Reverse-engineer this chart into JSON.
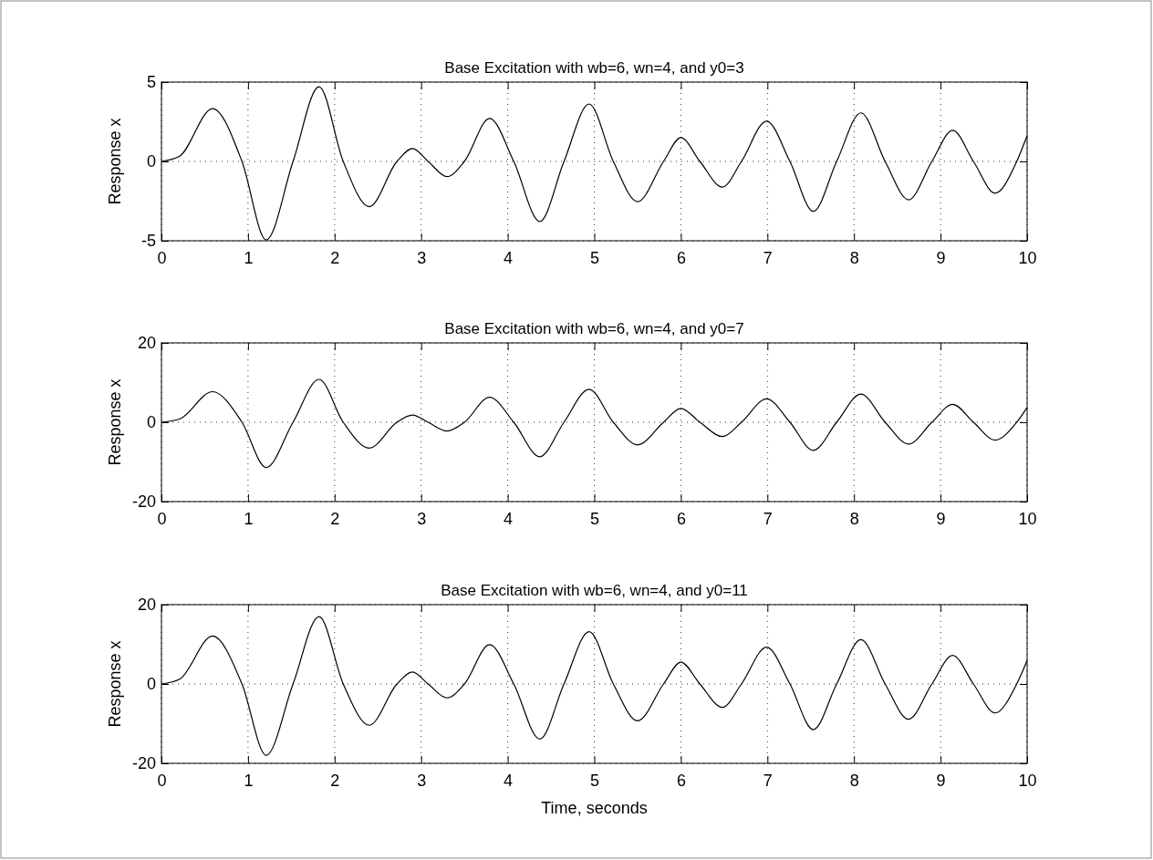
{
  "chart_data": [
    {
      "type": "line",
      "title": "Base Excitation with wb=6, wn=4, and y0=3",
      "ylabel": "Response x",
      "xlim": [
        0,
        10
      ],
      "xticks": [
        0,
        1,
        2,
        3,
        4,
        5,
        6,
        7,
        8,
        9,
        10
      ],
      "ylim": [
        -5,
        5
      ],
      "yticks": [
        -5,
        0,
        5
      ],
      "grid": true,
      "line_style": "solid",
      "marker": "none",
      "x": [
        0,
        0.21,
        0.59,
        0.93,
        1.21,
        1.52,
        1.82,
        2.1,
        2.4,
        2.72,
        2.9,
        3.08,
        3.3,
        3.5,
        3.79,
        4.07,
        4.37,
        4.65,
        4.94,
        5.22,
        5.5,
        5.8,
        6.0,
        6.22,
        6.48,
        6.7,
        6.99,
        7.26,
        7.53,
        7.8,
        8.08,
        8.36,
        8.63,
        8.9,
        9.14,
        9.38,
        9.63,
        9.88,
        10
      ],
      "series": [
        {
          "color": "#000000",
          "values": [
            0,
            0.33,
            3.33,
            0,
            -4.95,
            0,
            4.71,
            0,
            -2.85,
            0,
            0.81,
            0,
            -0.96,
            0,
            2.71,
            0,
            -3.79,
            0,
            3.62,
            0,
            -2.54,
            0,
            1.5,
            0,
            -1.62,
            0,
            2.54,
            0,
            -3.15,
            0,
            3.06,
            0,
            -2.42,
            0,
            1.96,
            0,
            -2.0,
            0,
            1.62
          ]
        }
      ]
    },
    {
      "type": "line",
      "title": "Base Excitation with wb=6, wn=4, and y0=7",
      "ylabel": "Response x",
      "xlim": [
        0,
        10
      ],
      "xticks": [
        0,
        1,
        2,
        3,
        4,
        5,
        6,
        7,
        8,
        9,
        10
      ],
      "ylim": [
        -20,
        20
      ],
      "yticks": [
        -20,
        0,
        20
      ],
      "grid": true,
      "line_style": "solid",
      "marker": "none",
      "x": [
        0,
        0.21,
        0.59,
        0.93,
        1.21,
        1.52,
        1.82,
        2.1,
        2.4,
        2.72,
        2.9,
        3.08,
        3.3,
        3.5,
        3.79,
        4.07,
        4.37,
        4.65,
        4.94,
        5.22,
        5.5,
        5.8,
        6.0,
        6.22,
        6.48,
        6.7,
        6.99,
        7.26,
        7.53,
        7.8,
        8.08,
        8.36,
        8.63,
        8.9,
        9.14,
        9.38,
        9.63,
        9.88,
        10
      ],
      "series": [
        {
          "color": "#000000",
          "values": [
            0,
            0.8,
            7.7,
            0,
            -11.4,
            0,
            10.8,
            0,
            -6.5,
            0,
            1.8,
            0,
            -2.2,
            0,
            6.3,
            0,
            -8.7,
            0,
            8.3,
            0,
            -5.7,
            0,
            3.5,
            0,
            -3.6,
            0,
            5.9,
            0,
            -7.1,
            0,
            7.1,
            0,
            -5.5,
            0,
            4.5,
            0,
            -4.5,
            0,
            3.7
          ]
        }
      ]
    },
    {
      "type": "line",
      "title": "Base Excitation with wb=6, wn=4, and y0=11",
      "xlabel": "Time, seconds",
      "ylabel": "Response x",
      "xlim": [
        0,
        10
      ],
      "xticks": [
        0,
        1,
        2,
        3,
        4,
        5,
        6,
        7,
        8,
        9,
        10
      ],
      "ylim": [
        -20,
        20
      ],
      "yticks": [
        -20,
        0,
        20
      ],
      "grid": true,
      "line_style": "solid",
      "marker": "none",
      "x": [
        0,
        0.21,
        0.59,
        0.93,
        1.21,
        1.52,
        1.82,
        2.1,
        2.4,
        2.72,
        2.9,
        3.08,
        3.3,
        3.5,
        3.79,
        4.07,
        4.37,
        4.65,
        4.94,
        5.22,
        5.5,
        5.8,
        6.0,
        6.22,
        6.48,
        6.7,
        6.99,
        7.26,
        7.53,
        7.8,
        8.08,
        8.36,
        8.63,
        8.9,
        9.14,
        9.38,
        9.63,
        9.88,
        10
      ],
      "series": [
        {
          "color": "#000000",
          "values": [
            0,
            1.2,
            12.1,
            0,
            -18,
            0,
            17,
            0,
            -10.4,
            0,
            3,
            0,
            -3.5,
            0,
            9.9,
            0,
            -13.9,
            0,
            13.2,
            0,
            -9.3,
            0,
            5.5,
            0,
            -5.9,
            0,
            9.3,
            0,
            -11.5,
            0,
            11.2,
            0,
            -8.9,
            0,
            7.2,
            0,
            -7.3,
            0,
            5.9
          ]
        }
      ]
    }
  ]
}
